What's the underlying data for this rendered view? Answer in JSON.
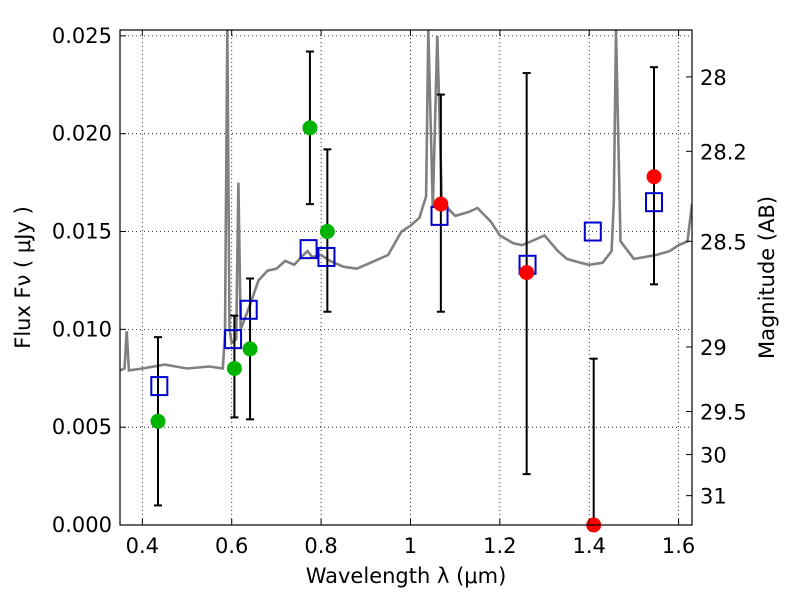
{
  "chart_data": {
    "type": "scatter",
    "xlabel": "Wavelength  λ (μm)",
    "ylabel": "Flux  Fν  ( μJy )",
    "y2label": "Magnitude (AB)",
    "xlim": [
      0.35,
      1.63
    ],
    "ylim": [
      0.0,
      0.0253
    ],
    "grid": true,
    "x_ticks": [
      {
        "v": 0.4,
        "label": "0.4"
      },
      {
        "v": 0.6,
        "label": "0.6"
      },
      {
        "v": 0.8,
        "label": "0.8"
      },
      {
        "v": 1.0,
        "label": "1"
      },
      {
        "v": 1.2,
        "label": "1.2"
      },
      {
        "v": 1.4,
        "label": "1.4"
      },
      {
        "v": 1.6,
        "label": "1.6"
      }
    ],
    "y_ticks": [
      {
        "v": 0.0,
        "label": "0.000"
      },
      {
        "v": 0.005,
        "label": "0.005"
      },
      {
        "v": 0.01,
        "label": "0.010"
      },
      {
        "v": 0.015,
        "label": "0.015"
      },
      {
        "v": 0.02,
        "label": "0.020"
      },
      {
        "v": 0.025,
        "label": "0.025"
      }
    ],
    "y2_ticks": [
      {
        "flux": 0.0229,
        "label": "28"
      },
      {
        "flux": 0.0191,
        "label": "28.2"
      },
      {
        "flux": 0.0145,
        "label": "28.5"
      },
      {
        "flux": 0.0091,
        "label": "29"
      },
      {
        "flux": 0.0058,
        "label": "29.5"
      },
      {
        "flux": 0.0036,
        "label": "30"
      },
      {
        "flux": 0.0015,
        "label": "31"
      }
    ],
    "colors": {
      "spectrum": "#808080",
      "green": "#00b300",
      "red": "#ff0000",
      "model": "#0000cc",
      "errorbar": "#000000",
      "grid": "#000000"
    },
    "spectrum": [
      [
        0.35,
        0.0079
      ],
      [
        0.36,
        0.008
      ],
      [
        0.365,
        0.0099
      ],
      [
        0.37,
        0.0079
      ],
      [
        0.4,
        0.008
      ],
      [
        0.45,
        0.0082
      ],
      [
        0.5,
        0.008
      ],
      [
        0.55,
        0.0081
      ],
      [
        0.58,
        0.008
      ],
      [
        0.585,
        0.0098
      ],
      [
        0.59,
        0.0253
      ],
      [
        0.595,
        0.01
      ],
      [
        0.6,
        0.0093
      ],
      [
        0.61,
        0.0095
      ],
      [
        0.615,
        0.0175
      ],
      [
        0.62,
        0.01
      ],
      [
        0.64,
        0.0112
      ],
      [
        0.66,
        0.0125
      ],
      [
        0.68,
        0.013
      ],
      [
        0.7,
        0.0131
      ],
      [
        0.72,
        0.0135
      ],
      [
        0.74,
        0.0133
      ],
      [
        0.76,
        0.0138
      ],
      [
        0.77,
        0.014
      ],
      [
        0.78,
        0.0137
      ],
      [
        0.8,
        0.0138
      ],
      [
        0.82,
        0.0135
      ],
      [
        0.85,
        0.0132
      ],
      [
        0.88,
        0.0131
      ],
      [
        0.9,
        0.0133
      ],
      [
        0.95,
        0.0138
      ],
      [
        0.98,
        0.015
      ],
      [
        1.0,
        0.0153
      ],
      [
        1.02,
        0.0157
      ],
      [
        1.035,
        0.0168
      ],
      [
        1.04,
        0.0253
      ],
      [
        1.05,
        0.0162
      ],
      [
        1.06,
        0.025
      ],
      [
        1.07,
        0.0165
      ],
      [
        1.1,
        0.0158
      ],
      [
        1.13,
        0.016
      ],
      [
        1.15,
        0.0162
      ],
      [
        1.18,
        0.0155
      ],
      [
        1.2,
        0.0148
      ],
      [
        1.23,
        0.0144
      ],
      [
        1.25,
        0.0143
      ],
      [
        1.27,
        0.0145
      ],
      [
        1.3,
        0.0148
      ],
      [
        1.33,
        0.014
      ],
      [
        1.35,
        0.0136
      ],
      [
        1.38,
        0.0134
      ],
      [
        1.4,
        0.0133
      ],
      [
        1.43,
        0.0134
      ],
      [
        1.45,
        0.014
      ],
      [
        1.455,
        0.0165
      ],
      [
        1.46,
        0.0253
      ],
      [
        1.47,
        0.0145
      ],
      [
        1.5,
        0.0136
      ],
      [
        1.55,
        0.0138
      ],
      [
        1.58,
        0.014
      ],
      [
        1.6,
        0.0143
      ],
      [
        1.62,
        0.0145
      ],
      [
        1.63,
        0.0164
      ]
    ],
    "observed": [
      {
        "x": 0.435,
        "y": 0.0053,
        "lo": 0.001,
        "hi": 0.0096,
        "color": "green"
      },
      {
        "x": 0.606,
        "y": 0.008,
        "lo": 0.0055,
        "hi": 0.0107,
        "color": "green"
      },
      {
        "x": 0.641,
        "y": 0.009,
        "lo": 0.0054,
        "hi": 0.0126,
        "color": "green"
      },
      {
        "x": 0.775,
        "y": 0.0203,
        "lo": 0.0164,
        "hi": 0.0242,
        "color": "green"
      },
      {
        "x": 0.814,
        "y": 0.015,
        "lo": 0.0109,
        "hi": 0.0192,
        "color": "green"
      },
      {
        "x": 1.068,
        "y": 0.0164,
        "lo": 0.0109,
        "hi": 0.022,
        "color": "red"
      },
      {
        "x": 1.26,
        "y": 0.0129,
        "lo": 0.0026,
        "hi": 0.0231,
        "color": "red"
      },
      {
        "x": 1.41,
        "y": 0.0,
        "lo": 0.0,
        "hi": 0.0085,
        "color": "red"
      },
      {
        "x": 1.545,
        "y": 0.0178,
        "lo": 0.0123,
        "hi": 0.0234,
        "color": "red"
      }
    ],
    "model": [
      {
        "x": 0.438,
        "y": 0.0071
      },
      {
        "x": 0.603,
        "y": 0.0095
      },
      {
        "x": 0.638,
        "y": 0.011
      },
      {
        "x": 0.772,
        "y": 0.0141
      },
      {
        "x": 0.812,
        "y": 0.0137
      },
      {
        "x": 1.065,
        "y": 0.0158
      },
      {
        "x": 1.262,
        "y": 0.0133
      },
      {
        "x": 1.408,
        "y": 0.015
      },
      {
        "x": 1.545,
        "y": 0.0165
      }
    ]
  }
}
